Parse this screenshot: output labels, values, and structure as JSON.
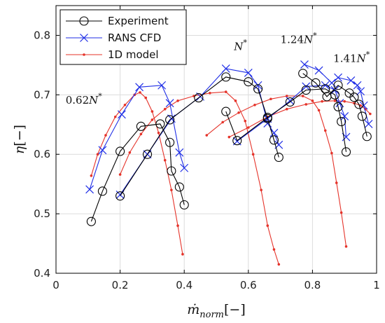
{
  "chart_data": {
    "type": "line",
    "xlabel_main": "ṁ",
    "xlabel_sub": "norm",
    "xlabel_tail": "[−]",
    "ylabel_main": "η",
    "ylabel_tail": "[−]",
    "xlim": [
      0,
      1
    ],
    "ylim": [
      0.4,
      0.85
    ],
    "xticks": [
      0,
      0.2,
      0.4,
      0.6,
      0.8,
      1
    ],
    "xtick_labels": [
      "0",
      "0.2",
      "0.4",
      "0.6",
      "0.8",
      "1"
    ],
    "yticks": [
      0.4,
      0.5,
      0.6,
      0.7,
      0.8
    ],
    "ytick_labels": [
      "0.4",
      "0.5",
      "0.6",
      "0.7",
      "0.8"
    ],
    "grid": true,
    "legend_position": "top-left",
    "annotations": [
      {
        "coef": "0.62",
        "x": 0.03,
        "y": 0.685
      },
      {
        "coef": "",
        "x": 0.555,
        "y": 0.775
      },
      {
        "coef": "1.24",
        "x": 0.7,
        "y": 0.787
      },
      {
        "coef": "1.41",
        "x": 0.865,
        "y": 0.755
      }
    ],
    "annotation_symbol": "N",
    "annotation_sup": "*",
    "series": [
      {
        "name": "Experiment",
        "color": "#000000",
        "marker": "circle",
        "curves": [
          [
            [
              0.11,
              0.487
            ],
            [
              0.145,
              0.538
            ],
            [
              0.2,
              0.605
            ],
            [
              0.265,
              0.647
            ],
            [
              0.325,
              0.651
            ],
            [
              0.355,
              0.62
            ],
            [
              0.36,
              0.572
            ],
            [
              0.385,
              0.545
            ],
            [
              0.4,
              0.515
            ]
          ],
          [
            [
              0.2,
              0.53
            ],
            [
              0.285,
              0.6
            ],
            [
              0.355,
              0.658
            ],
            [
              0.445,
              0.695
            ],
            [
              0.53,
              0.73
            ],
            [
              0.6,
              0.722
            ],
            [
              0.63,
              0.71
            ],
            [
              0.66,
              0.66
            ],
            [
              0.68,
              0.624
            ],
            [
              0.695,
              0.595
            ]
          ],
          [
            [
              0.53,
              0.672
            ],
            [
              0.565,
              0.623
            ],
            [
              0.66,
              0.662
            ],
            [
              0.73,
              0.688
            ],
            [
              0.78,
              0.708
            ],
            [
              0.84,
              0.71
            ],
            [
              0.87,
              0.7
            ],
            [
              0.88,
              0.68
            ],
            [
              0.89,
              0.655
            ],
            [
              0.905,
              0.604
            ]
          ],
          [
            [
              0.77,
              0.736
            ],
            [
              0.81,
              0.72
            ],
            [
              0.845,
              0.697
            ],
            [
              0.88,
              0.716
            ],
            [
              0.915,
              0.703
            ],
            [
              0.93,
              0.696
            ],
            [
              0.945,
              0.684
            ],
            [
              0.955,
              0.664
            ],
            [
              0.97,
              0.63
            ]
          ]
        ]
      },
      {
        "name": "RANS CFD",
        "color": "#1f2ee6",
        "marker": "x",
        "curves": [
          [
            [
              0.105,
              0.541
            ],
            [
              0.145,
              0.607
            ],
            [
              0.205,
              0.667
            ],
            [
              0.26,
              0.713
            ],
            [
              0.33,
              0.716
            ],
            [
              0.355,
              0.686
            ],
            [
              0.385,
              0.603
            ],
            [
              0.4,
              0.577
            ]
          ],
          [
            [
              0.2,
              0.532
            ],
            [
              0.285,
              0.6
            ],
            [
              0.36,
              0.66
            ],
            [
              0.45,
              0.697
            ],
            [
              0.53,
              0.744
            ],
            [
              0.6,
              0.737
            ],
            [
              0.63,
              0.716
            ],
            [
              0.66,
              0.652
            ],
            [
              0.68,
              0.636
            ],
            [
              0.695,
              0.616
            ]
          ],
          [
            [
              0.565,
              0.622
            ],
            [
              0.66,
              0.66
            ],
            [
              0.73,
              0.69
            ],
            [
              0.78,
              0.714
            ],
            [
              0.84,
              0.716
            ],
            [
              0.87,
              0.708
            ],
            [
              0.885,
              0.686
            ],
            [
              0.9,
              0.664
            ],
            [
              0.905,
              0.629
            ]
          ],
          [
            [
              0.775,
              0.751
            ],
            [
              0.82,
              0.741
            ],
            [
              0.86,
              0.72
            ],
            [
              0.88,
              0.729
            ],
            [
              0.92,
              0.724
            ],
            [
              0.94,
              0.716
            ],
            [
              0.95,
              0.706
            ],
            [
              0.96,
              0.682
            ],
            [
              0.975,
              0.651
            ]
          ]
        ]
      },
      {
        "name": "1D model",
        "color": "#e5332a",
        "marker": "dot",
        "curves": [
          [
            [
              0.11,
              0.564
            ],
            [
              0.13,
              0.6
            ],
            [
              0.155,
              0.632
            ],
            [
              0.185,
              0.663
            ],
            [
              0.215,
              0.683
            ],
            [
              0.245,
              0.7
            ],
            [
              0.262,
              0.704
            ],
            [
              0.28,
              0.695
            ],
            [
              0.3,
              0.672
            ],
            [
              0.32,
              0.636
            ],
            [
              0.34,
              0.59
            ],
            [
              0.36,
              0.54
            ],
            [
              0.38,
              0.48
            ],
            [
              0.395,
              0.432
            ]
          ],
          [
            [
              0.2,
              0.566
            ],
            [
              0.23,
              0.603
            ],
            [
              0.265,
              0.634
            ],
            [
              0.3,
              0.658
            ],
            [
              0.34,
              0.676
            ],
            [
              0.38,
              0.69
            ],
            [
              0.43,
              0.698
            ],
            [
              0.48,
              0.703
            ],
            [
              0.53,
              0.705
            ],
            [
              0.56,
              0.69
            ],
            [
              0.59,
              0.656
            ],
            [
              0.615,
              0.6
            ],
            [
              0.64,
              0.54
            ],
            [
              0.66,
              0.48
            ],
            [
              0.68,
              0.44
            ],
            [
              0.695,
              0.415
            ]
          ],
          [
            [
              0.47,
              0.632
            ],
            [
              0.52,
              0.654
            ],
            [
              0.57,
              0.67
            ],
            [
              0.62,
              0.683
            ],
            [
              0.67,
              0.693
            ],
            [
              0.72,
              0.698
            ],
            [
              0.77,
              0.698
            ],
            [
              0.8,
              0.69
            ],
            [
              0.82,
              0.674
            ],
            [
              0.84,
              0.64
            ],
            [
              0.86,
              0.602
            ],
            [
              0.875,
              0.552
            ],
            [
              0.89,
              0.502
            ],
            [
              0.905,
              0.445
            ]
          ],
          [
            [
              0.54,
              0.629
            ],
            [
              0.6,
              0.645
            ],
            [
              0.66,
              0.663
            ],
            [
              0.72,
              0.676
            ],
            [
              0.78,
              0.684
            ],
            [
              0.83,
              0.689
            ],
            [
              0.87,
              0.69
            ],
            [
              0.9,
              0.689
            ],
            [
              0.93,
              0.686
            ],
            [
              0.95,
              0.682
            ],
            [
              0.965,
              0.676
            ],
            [
              0.98,
              0.668
            ]
          ]
        ]
      }
    ]
  }
}
